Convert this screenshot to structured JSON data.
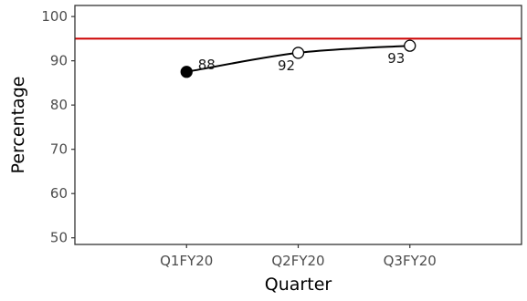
{
  "chart_data": {
    "type": "line",
    "title": "",
    "xlabel": "Quarter",
    "ylabel": "Percentage",
    "categories": [
      "Q1FY20",
      "Q2FY20",
      "Q3FY20"
    ],
    "ylim": [
      48.5,
      102.5
    ],
    "yticks": [
      50,
      60,
      70,
      80,
      90,
      100
    ],
    "grid": false,
    "series": [
      {
        "values": [
          87.5,
          91.8,
          93.4
        ],
        "data_labels": [
          "88",
          "92",
          "93"
        ],
        "markers": [
          "filled",
          "open",
          "open"
        ],
        "color": "#000000"
      }
    ],
    "reference_line": {
      "y": 95,
      "color": "#cc0000"
    }
  }
}
